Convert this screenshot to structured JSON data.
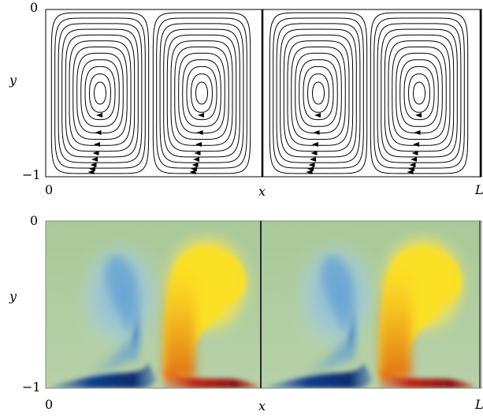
{
  "figure": {
    "top_panel": {
      "y_axis_label": "y",
      "x_axis_label": "x",
      "y_tick_top": "0",
      "y_tick_bottom": "−1",
      "x_tick_left": "0",
      "x_tick_right": "L"
    },
    "bottom_panel": {
      "y_axis_label": "y",
      "x_axis_label": "x",
      "y_tick_top": "0",
      "y_tick_bottom": "−1",
      "x_tick_left": "0",
      "x_tick_right": "L"
    }
  }
}
